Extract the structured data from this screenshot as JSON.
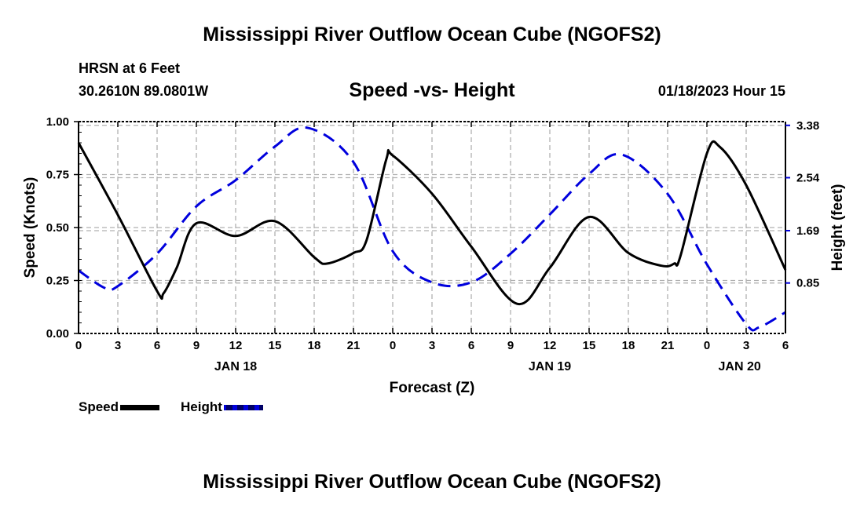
{
  "title": "Mississippi River Outflow Ocean Cube (NGOFS2)",
  "station": "HRSN at 6 Feet",
  "coords": "30.2610N  89.0801W",
  "subtitle": "Speed -vs- Height",
  "datetime": "01/18/2023 Hour 15",
  "footer_title": "Mississippi River Outflow Ocean Cube (NGOFS2)",
  "colors": {
    "speed": "#000000",
    "height": "#0000dd",
    "grid": "#b0b0b0"
  },
  "chart_data": {
    "type": "line",
    "title": "Speed -vs- Height",
    "xlabel": "Forecast (Z)",
    "ylabel": "Speed (Knots)",
    "y2label": "Height (feet)",
    "xlim": [
      0,
      54
    ],
    "ylim": [
      0,
      1
    ],
    "y2lim": [
      0.04,
      3.44
    ],
    "xticks": [
      0,
      3,
      6,
      9,
      12,
      15,
      18,
      21,
      24,
      27,
      30,
      33,
      36,
      39,
      42,
      45,
      48,
      51,
      54
    ],
    "xtick_labels": [
      "0",
      "3",
      "6",
      "9",
      "12",
      "15",
      "18",
      "21",
      "0",
      "3",
      "6",
      "9",
      "12",
      "15",
      "18",
      "21",
      "0",
      "3",
      "6"
    ],
    "day_labels": [
      {
        "x": 12,
        "label": "JAN 18"
      },
      {
        "x": 36,
        "label": "JAN 19"
      },
      {
        "x": 50.5,
        "label": "JAN 20"
      }
    ],
    "yticks": [
      0,
      0.25,
      0.5,
      0.75,
      1.0
    ],
    "ytick_labels": [
      "0.00",
      "0.25",
      "0.50",
      "0.75",
      "1.00"
    ],
    "y2ticks": [
      0.85,
      1.69,
      2.54,
      3.38
    ],
    "y2tick_labels": [
      "0.85",
      "1.69",
      "2.54",
      "3.38"
    ],
    "grid": true,
    "legend_position": "bottom-left",
    "series": [
      {
        "name": "Speed",
        "axis": "left",
        "style": "solid",
        "x": [
          0,
          3,
          6,
          6.5,
          7.5,
          9,
          12,
          15,
          18,
          19,
          21,
          22,
          23.5,
          24,
          27,
          30,
          33.5,
          36,
          39,
          42,
          44.5,
          45.5,
          46,
          48,
          49,
          51,
          54
        ],
        "values": [
          0.9,
          0.56,
          0.2,
          0.19,
          0.31,
          0.52,
          0.46,
          0.53,
          0.36,
          0.33,
          0.38,
          0.44,
          0.82,
          0.84,
          0.66,
          0.41,
          0.14,
          0.31,
          0.55,
          0.38,
          0.32,
          0.33,
          0.37,
          0.85,
          0.88,
          0.7,
          0.3
        ]
      },
      {
        "name": "Height",
        "axis": "right",
        "style": "dashed",
        "x": [
          0,
          2,
          3,
          6,
          9,
          12,
          15,
          17.5,
          21,
          24,
          27,
          30,
          33,
          36,
          39,
          41.5,
          45,
          48,
          51,
          52,
          54
        ],
        "values": [
          1.05,
          0.77,
          0.8,
          1.32,
          2.08,
          2.5,
          3.04,
          3.34,
          2.79,
          1.36,
          0.86,
          0.86,
          1.32,
          1.95,
          2.6,
          2.91,
          2.28,
          1.15,
          0.19,
          0.14,
          0.38
        ]
      }
    ]
  }
}
